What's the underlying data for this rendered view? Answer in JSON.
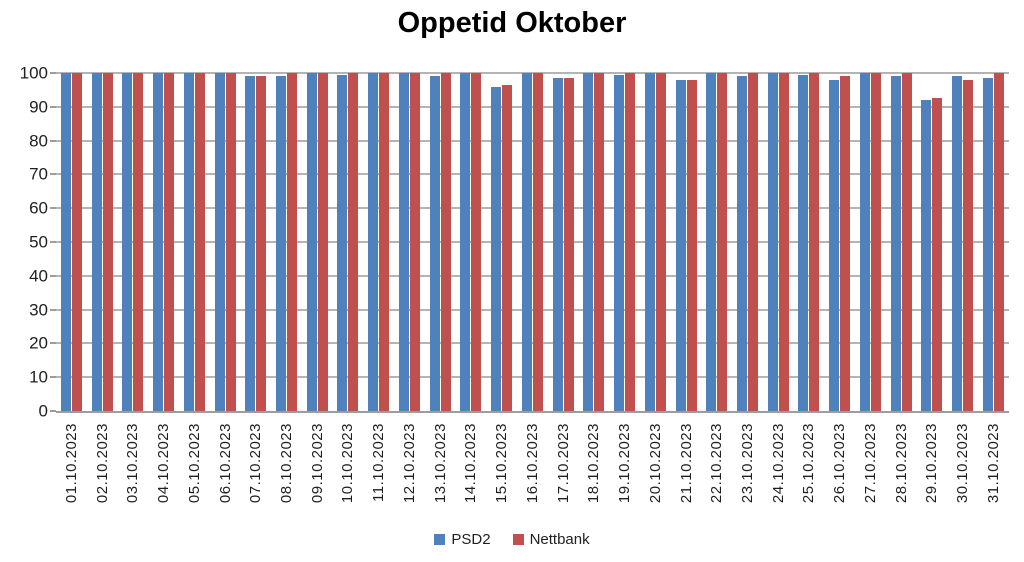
{
  "chart_data": {
    "type": "bar",
    "title": "Oppetid Oktober",
    "xlabel": "",
    "ylabel": "",
    "ylim": [
      0,
      100
    ],
    "yticks": [
      0,
      10,
      20,
      30,
      40,
      50,
      60,
      70,
      80,
      90,
      100
    ],
    "grid": "horizontal",
    "legend_position": "bottom",
    "categories": [
      "01.10.2023",
      "02.10.2023",
      "03.10.2023",
      "04.10.2023",
      "05.10.2023",
      "06.10.2023",
      "07.10.2023",
      "08.10.2023",
      "09.10.2023",
      "10.10.2023",
      "11.10.2023",
      "12.10.2023",
      "13.10.2023",
      "14.10.2023",
      "15.10.2023",
      "16.10.2023",
      "17.10.2023",
      "18.10.2023",
      "19.10.2023",
      "20.10.2023",
      "21.10.2023",
      "22.10.2023",
      "23.10.2023",
      "24.10.2023",
      "25.10.2023",
      "26.10.2023",
      "27.10.2023",
      "28.10.2023",
      "29.10.2023",
      "30.10.2023",
      "31.10.2023"
    ],
    "series": [
      {
        "name": "PSD2",
        "color": "#4F81BD",
        "values": [
          100,
          100,
          100,
          100,
          100,
          100,
          99,
          99,
          100,
          99.5,
          100,
          100,
          99,
          100,
          96,
          100,
          98.5,
          100,
          99.5,
          100,
          98,
          100,
          99,
          100,
          99.5,
          98,
          100,
          99,
          92,
          99,
          98.5
        ]
      },
      {
        "name": "Nettbank",
        "color": "#C0504D",
        "values": [
          100,
          100,
          100,
          100,
          100,
          100,
          99,
          100,
          100,
          100,
          100,
          100,
          100,
          100,
          96.5,
          100,
          98.5,
          100,
          100,
          100,
          98,
          100,
          100,
          100,
          100,
          99,
          100,
          100,
          92.5,
          98,
          100
        ]
      }
    ]
  }
}
